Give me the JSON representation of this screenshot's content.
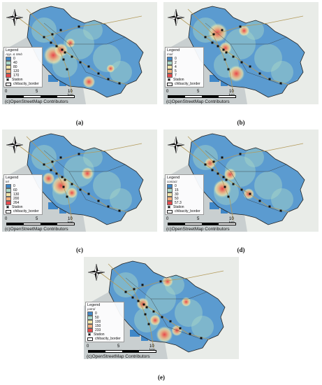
{
  "panels": [
    {
      "caption": "(a)",
      "legend_title": "Legend",
      "legend_subtitle": "App. & Web",
      "classes": [
        "0",
        "40",
        "80",
        "120",
        "170"
      ],
      "hotspots": [
        [
          0.33,
          0.52,
          14
        ],
        [
          0.38,
          0.47,
          10
        ],
        [
          0.56,
          0.78,
          9
        ],
        [
          0.44,
          0.4,
          7
        ],
        [
          0.7,
          0.65,
          6
        ]
      ]
    },
    {
      "caption": "(b)",
      "legend_title": "Legend",
      "legend_subtitle": "mail",
      "classes": [
        "0",
        "2",
        "4",
        "5",
        "7"
      ],
      "hotspots": [
        [
          0.35,
          0.3,
          14
        ],
        [
          0.47,
          0.7,
          12
        ],
        [
          0.4,
          0.45,
          9
        ],
        [
          0.88,
          0.8,
          8
        ],
        [
          0.52,
          0.28,
          8
        ]
      ]
    },
    {
      "caption": "(c)",
      "legend_title": "Legend",
      "legend_subtitle": "tel",
      "classes": [
        "0",
        "60",
        "130",
        "200",
        "264"
      ],
      "hotspots": [
        [
          0.38,
          0.55,
          14
        ],
        [
          0.55,
          0.43,
          9
        ],
        [
          0.3,
          0.48,
          9
        ],
        [
          0.45,
          0.62,
          8
        ]
      ]
    },
    {
      "caption": "(d)",
      "legend_title": "Legend",
      "legend_subtitle": "contact",
      "classes": [
        "0",
        "15",
        "30",
        "50",
        "57.3"
      ],
      "hotspots": [
        [
          0.38,
          0.58,
          13
        ],
        [
          0.43,
          0.44,
          9
        ],
        [
          0.3,
          0.33,
          8
        ],
        [
          0.55,
          0.63,
          8
        ]
      ]
    },
    {
      "caption": "(e)",
      "legend_title": "Legend",
      "legend_subtitle": "patrol",
      "classes": [
        "0",
        "50",
        "100",
        "150",
        "233"
      ],
      "hotspots": [
        [
          0.52,
          0.76,
          12
        ],
        [
          0.38,
          0.46,
          9
        ],
        [
          0.54,
          0.24,
          8
        ],
        [
          0.46,
          0.62,
          8
        ],
        [
          0.66,
          0.44,
          7
        ],
        [
          0.6,
          0.72,
          8
        ]
      ]
    }
  ],
  "legend_colors": [
    "#3f87c8",
    "#a8d8c8",
    "#f2e6a8",
    "#f3b07e",
    "#e6474a"
  ],
  "legend_station_label": "Station",
  "legend_border_label": "chibacity_border",
  "scale": {
    "ticks": [
      "0",
      "5",
      "10 km"
    ]
  },
  "copyright": "(c)OpenStreetMap Contributors",
  "icons": {
    "north_arrow": "compass-rose-icon",
    "station": "train-icon"
  }
}
